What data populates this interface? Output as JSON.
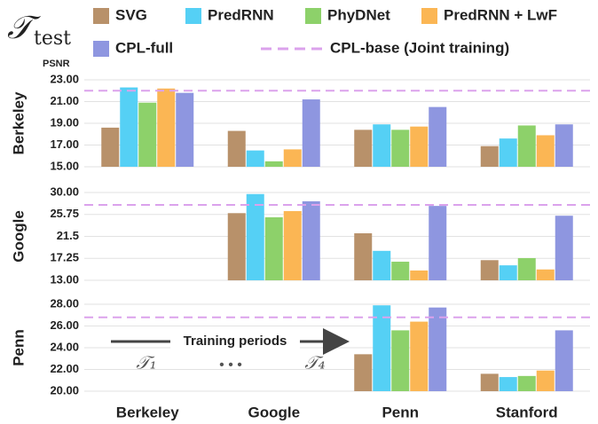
{
  "chart_data": {
    "type": "bar",
    "title_symbol": "𝒯",
    "title_subscript": "test",
    "y_unit_label": "PSNR",
    "categories": [
      "Berkeley",
      "Google",
      "Penn",
      "Stanford"
    ],
    "series": [
      {
        "name": "SVG",
        "color": "#b8916a"
      },
      {
        "name": "PredRNN",
        "color": "#55d0f5"
      },
      {
        "name": "PhyDNet",
        "color": "#8dd16a"
      },
      {
        "name": "PredRNN + LwF",
        "color": "#fbb654"
      },
      {
        "name": "CPL-full",
        "color": "#8e96e0"
      }
    ],
    "reference": {
      "name": "CPL-base (Joint training)",
      "color": "#dba2ec"
    },
    "grid": true,
    "panels": [
      {
        "label": "Berkeley",
        "ylim": [
          15,
          23
        ],
        "yticks": [
          {
            "value": 15,
            "label": "15.00"
          },
          {
            "value": 17,
            "label": "17.00"
          },
          {
            "value": 19,
            "label": "19.00"
          },
          {
            "value": 21,
            "label": "21.00"
          },
          {
            "value": 23,
            "label": "23.00"
          }
        ],
        "reference_value": 22.0,
        "series": [
          {
            "values": [
              18.6,
              18.3,
              18.4,
              16.9
            ]
          },
          {
            "values": [
              22.3,
              16.5,
              18.9,
              17.6
            ]
          },
          {
            "values": [
              20.9,
              15.5,
              18.4,
              18.8
            ]
          },
          {
            "values": [
              22.2,
              16.6,
              18.7,
              17.9
            ]
          },
          {
            "values": [
              21.8,
              21.2,
              20.5,
              18.9
            ]
          }
        ]
      },
      {
        "label": "Google",
        "ylim": [
          13,
          30
        ],
        "yticks": [
          {
            "value": 13,
            "label": "13.00"
          },
          17.25,
          21.5,
          25.75,
          {
            "value": 30,
            "label": "30.00"
          }
        ],
        "reference_value": 27.6,
        "series": [
          {
            "values": [
              null,
              26.0,
              22.1,
              16.9
            ]
          },
          {
            "values": [
              null,
              29.7,
              18.7,
              15.9
            ]
          },
          {
            "values": [
              null,
              25.2,
              16.6,
              17.3
            ]
          },
          {
            "values": [
              null,
              26.4,
              14.9,
              15.1
            ]
          },
          {
            "values": [
              null,
              28.3,
              27.4,
              25.5
            ]
          }
        ]
      },
      {
        "label": "Penn",
        "ylim": [
          20,
          28
        ],
        "yticks": [
          {
            "value": 20,
            "label": "20.00"
          },
          {
            "value": 22,
            "label": "22.00"
          },
          {
            "value": 24,
            "label": "24.00"
          },
          {
            "value": 26,
            "label": "26.00"
          },
          {
            "value": 28,
            "label": "28.00"
          }
        ],
        "reference_value": 26.8,
        "series": [
          {
            "values": [
              null,
              null,
              23.4,
              21.6
            ]
          },
          {
            "values": [
              null,
              null,
              27.9,
              21.3
            ]
          },
          {
            "values": [
              null,
              null,
              25.6,
              21.4
            ]
          },
          {
            "values": [
              null,
              null,
              26.4,
              21.9
            ]
          },
          {
            "values": [
              null,
              null,
              27.7,
              25.6
            ]
          }
        ]
      }
    ],
    "annotations": {
      "arrow_label": "Training periods",
      "start": "𝒯₁",
      "dots": "• • •",
      "end": "𝒯₄"
    }
  }
}
